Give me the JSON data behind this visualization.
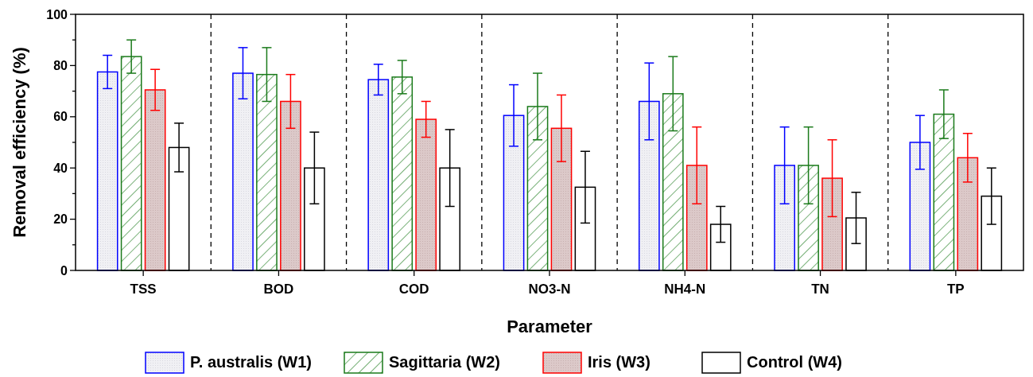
{
  "chart_data": {
    "type": "bar",
    "xlabel": "Parameter",
    "ylabel": "Removal efficiency (%)",
    "categories": [
      "TSS",
      "BOD",
      "COD",
      "NO3-N",
      "NH4-N",
      "TN",
      "TP"
    ],
    "series": [
      {
        "name": "P. australis (W1)",
        "color": "#0000ff",
        "values": [
          77.5,
          77,
          74.5,
          60.5,
          66,
          41,
          50
        ],
        "errors": [
          6.5,
          10,
          6,
          12,
          15,
          15,
          10.5
        ]
      },
      {
        "name": "Sagittaria (W2)",
        "color": "#1a7a1a",
        "values": [
          83.5,
          76.5,
          75.5,
          64,
          69,
          41,
          61
        ],
        "errors": [
          6.5,
          10.5,
          6.5,
          13,
          14.5,
          15,
          9.5
        ]
      },
      {
        "name": "Iris (W3)",
        "color": "#ff0000",
        "values": [
          70.5,
          66,
          59,
          55.5,
          41,
          36,
          44
        ],
        "errors": [
          8,
          10.5,
          7,
          13,
          15,
          15,
          9.5
        ]
      },
      {
        "name": "Control (W4)",
        "color": "#000000",
        "values": [
          48,
          40,
          40,
          32.5,
          18,
          20.5,
          29
        ],
        "errors": [
          9.5,
          14,
          15,
          14,
          7,
          10,
          11
        ]
      }
    ],
    "ylim": [
      0,
      100
    ],
    "yticks": [
      0,
      {
        "value": 10,
        "label": null
      },
      20,
      {
        "value": 30,
        "label": null
      },
      40,
      {
        "value": 50,
        "label": null
      },
      60,
      {
        "value": 70,
        "label": null
      },
      80,
      {
        "value": 90,
        "label": null
      },
      100
    ],
    "grid": false,
    "legend": "bottom"
  }
}
